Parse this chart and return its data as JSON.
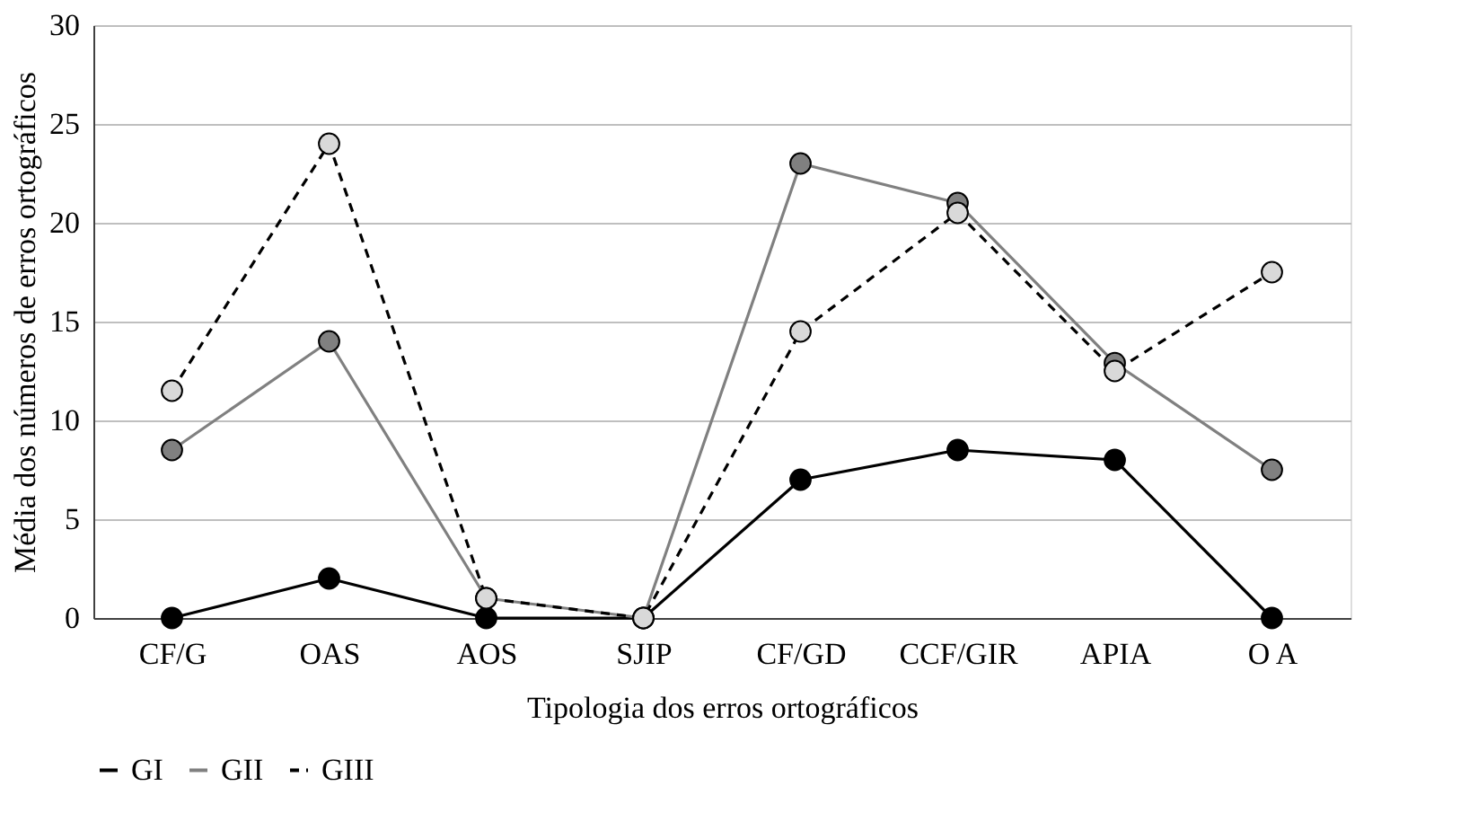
{
  "chart_data": {
    "type": "line",
    "xlabel": "Tipologia dos erros ortográficos",
    "ylabel": "Média dos números de erros ortográficos",
    "categories": [
      "CF/G",
      "OAS",
      "AOS",
      "SJIP",
      "CF/GD",
      "CCF/GIR",
      "APIA",
      "O A"
    ],
    "ylim": [
      0,
      30
    ],
    "yticks": [
      0,
      5,
      10,
      15,
      20,
      25,
      30
    ],
    "grid": "y",
    "legend": "bottom",
    "marker": "circle",
    "series": [
      {
        "name": "GI",
        "color": "#000000",
        "line_style": "solid",
        "values": [
          0,
          2,
          0,
          0,
          7,
          8.5,
          8,
          0
        ]
      },
      {
        "name": "GII",
        "color": "#808080",
        "line_style": "solid",
        "values": [
          8.5,
          14,
          1,
          0,
          23,
          21,
          12.9,
          7.5
        ]
      },
      {
        "name": "GIII",
        "color": "#000000",
        "line_style": "dashed",
        "values": [
          11.5,
          24,
          1,
          0,
          14.5,
          20.5,
          12.5,
          17.5
        ]
      }
    ]
  }
}
